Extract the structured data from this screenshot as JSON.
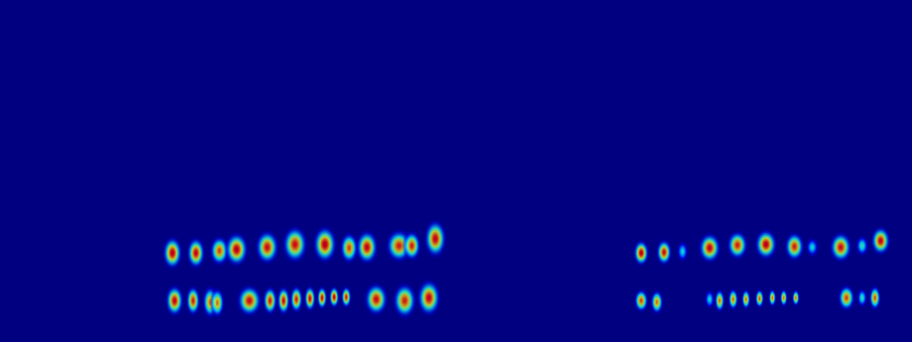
{
  "chart_data": {
    "type": "scatter",
    "xlim": [
      0,
      1280
    ],
    "ylim": [
      0,
      480
    ],
    "tick_labels": false,
    "grid": false,
    "color_range": [
      0,
      1
    ],
    "blobs": {
      "x": [
        242,
        275,
        308,
        332,
        375,
        414,
        456,
        490,
        515,
        560,
        578,
        611,
        245,
        271,
        295,
        305,
        350,
        379,
        398,
        416,
        435,
        452,
        469,
        486,
        528,
        568,
        602,
        900,
        932,
        958,
        996,
        1035,
        1075,
        1115,
        1140,
        1180,
        1210,
        1236,
        900,
        922,
        996,
        1010,
        1029,
        1047,
        1066,
        1084,
        1100,
        1117,
        1188,
        1210,
        1228
      ],
      "y": [
        125,
        125,
        128,
        130,
        133,
        137,
        137,
        132,
        133,
        135,
        135,
        145,
        58,
        58,
        56,
        55,
        58,
        58,
        58,
        60,
        61,
        62,
        63,
        63,
        60,
        58,
        62,
        125,
        126,
        127,
        132,
        136,
        137,
        134,
        133,
        133,
        135,
        142,
        58,
        56,
        60,
        58,
        60,
        60,
        61,
        62,
        62,
        62,
        62,
        62,
        62
      ],
      "intensity": [
        0.92,
        0.9,
        0.8,
        0.92,
        0.88,
        0.88,
        0.93,
        0.8,
        0.9,
        0.85,
        0.85,
        0.9,
        0.9,
        0.85,
        0.75,
        0.75,
        0.88,
        0.85,
        0.88,
        0.85,
        0.88,
        0.88,
        0.9,
        0.85,
        0.88,
        0.85,
        0.9,
        0.92,
        0.88,
        0.4,
        0.9,
        0.85,
        0.92,
        0.85,
        0.4,
        0.88,
        0.45,
        0.9,
        0.8,
        0.75,
        0.4,
        0.75,
        0.75,
        0.75,
        0.78,
        0.75,
        0.75,
        0.75,
        0.8,
        0.45,
        0.78
      ],
      "width": [
        30,
        28,
        30,
        36,
        36,
        38,
        36,
        28,
        34,
        40,
        28,
        34,
        28,
        22,
        24,
        22,
        38,
        22,
        20,
        20,
        18,
        16,
        16,
        16,
        36,
        36,
        36,
        24,
        24,
        18,
        34,
        32,
        34,
        30,
        20,
        34,
        20,
        30,
        22,
        20,
        16,
        16,
        16,
        14,
        14,
        12,
        12,
        12,
        26,
        16,
        18
      ],
      "height": [
        50,
        48,
        46,
        52,
        52,
        56,
        56,
        48,
        52,
        50,
        46,
        58,
        48,
        46,
        50,
        46,
        48,
        44,
        44,
        42,
        40,
        36,
        34,
        34,
        50,
        54,
        56,
        40,
        40,
        32,
        46,
        44,
        46,
        44,
        30,
        46,
        32,
        44,
        36,
        38,
        30,
        36,
        34,
        32,
        30,
        28,
        28,
        26,
        40,
        30,
        38
      ]
    }
  }
}
